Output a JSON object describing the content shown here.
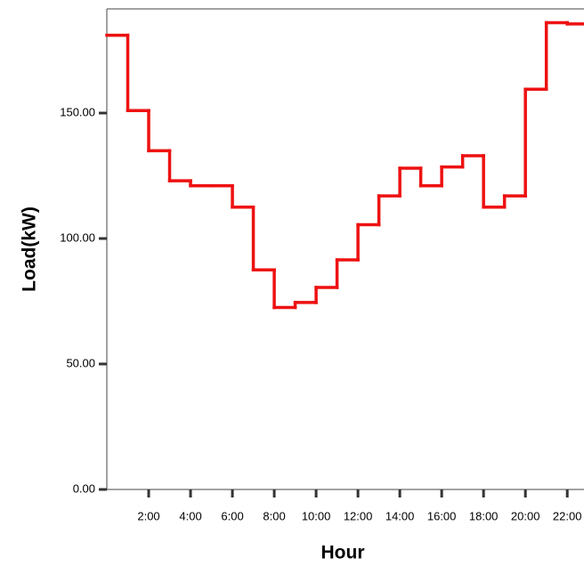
{
  "chart_data": {
    "type": "step",
    "x_label": "Hour",
    "y_label": "Load(kW)",
    "x": [
      0,
      1,
      2,
      3,
      4,
      5,
      6,
      7,
      8,
      9,
      10,
      11,
      12,
      13,
      14,
      15,
      16,
      17,
      18,
      19,
      20,
      21,
      22
    ],
    "series": [
      {
        "name": "Load",
        "color": "#ee1111",
        "values": [
          181,
          151,
          135,
          123,
          121,
          121,
          112.5,
          87.5,
          72.5,
          74.5,
          80.5,
          91.5,
          105.5,
          117,
          128,
          121,
          128.5,
          133,
          112.5,
          117,
          159.5,
          186,
          185.5
        ]
      }
    ],
    "xlim": [
      0,
      22.8
    ],
    "ylim": [
      0,
      191.5
    ],
    "xticks": [
      {
        "value": 2,
        "label": "2:00"
      },
      {
        "value": 4,
        "label": "4:00"
      },
      {
        "value": 6,
        "label": "6:00"
      },
      {
        "value": 8,
        "label": "8:00"
      },
      {
        "value": 10,
        "label": "10:00"
      },
      {
        "value": 12,
        "label": "12:00"
      },
      {
        "value": 14,
        "label": "14:00"
      },
      {
        "value": 16,
        "label": "16:00"
      },
      {
        "value": 18,
        "label": "18:00"
      },
      {
        "value": 20,
        "label": "20:00"
      },
      {
        "value": 22,
        "label": "22:00"
      }
    ],
    "yticks": [
      {
        "value": 0,
        "label": "0.00"
      },
      {
        "value": 50,
        "label": "50.00"
      },
      {
        "value": 100,
        "label": "100.00"
      },
      {
        "value": 150,
        "label": "150.00"
      }
    ]
  }
}
